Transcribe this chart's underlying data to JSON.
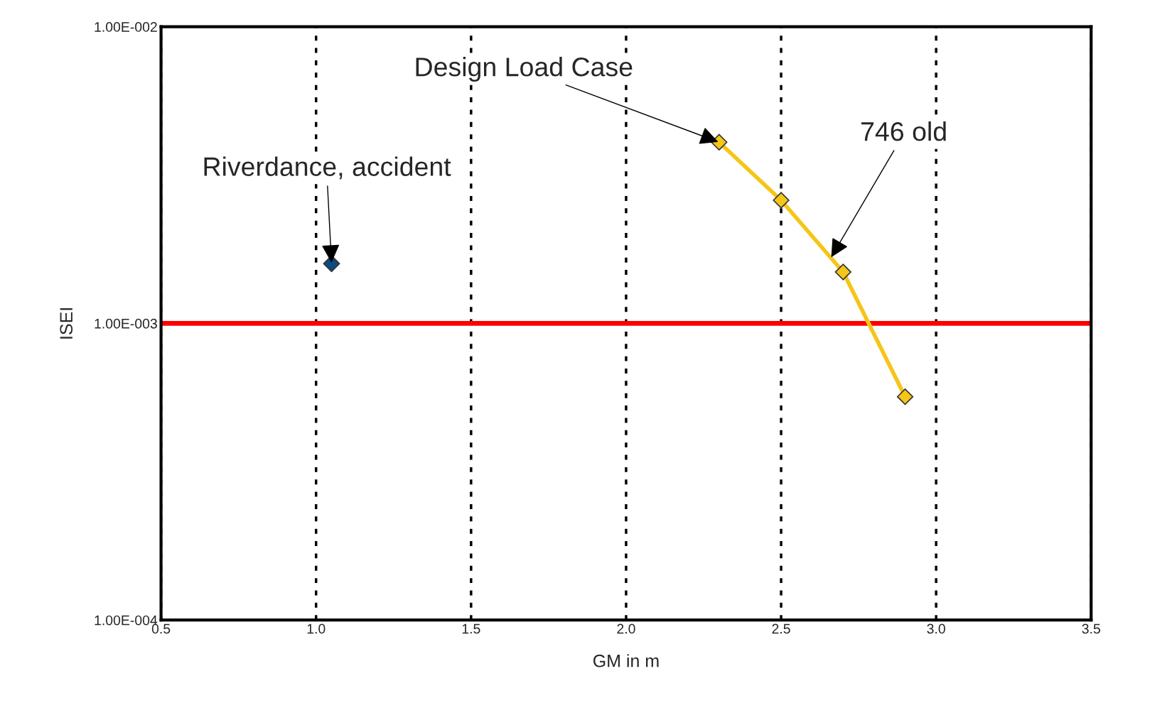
{
  "chart_data": {
    "type": "line",
    "xlabel": "GM in m",
    "ylabel": "ISEI",
    "log": "y",
    "grid": "x",
    "marker": "diamond",
    "xlim": [
      0.5,
      3.5
    ],
    "ylim": [
      0.0001,
      0.01
    ],
    "xticks": [
      {
        "value": 0.5,
        "label": "0.5"
      },
      {
        "value": 1.0,
        "label": "1.0"
      },
      {
        "value": 1.5,
        "label": "1.5"
      },
      {
        "value": 2.0,
        "label": "2.0"
      },
      {
        "value": 2.5,
        "label": "2.5"
      },
      {
        "value": 3.0,
        "label": "3.0"
      },
      {
        "value": 3.5,
        "label": "3.5"
      }
    ],
    "yticks": [
      {
        "value": 0.0001,
        "label": "1.00E-004"
      },
      {
        "value": 0.001,
        "label": "1.00E-003"
      },
      {
        "value": 0.01,
        "label": "1.00E-002"
      }
    ],
    "series": [
      {
        "type": "scatter",
        "color": "#0d4a80",
        "x": [
          1.05
        ],
        "values": [
          0.00159
        ]
      },
      {
        "color": "#f5c518",
        "x": [
          2.3,
          2.5,
          2.7,
          2.9
        ],
        "values": [
          0.00408,
          0.0026,
          0.00149,
          0.000566
        ]
      }
    ],
    "ref_lines": [
      {
        "axis": "y",
        "value": 0.001,
        "color": "#ff0000",
        "line_style": "solid"
      }
    ],
    "annotations": [
      {
        "text": "Riverdance, accident",
        "x": 1.05,
        "y": 0.00159
      },
      {
        "text": "Design Load Case",
        "x": 2.3,
        "y": 0.00408
      },
      {
        "text": "746 old",
        "x": 2.66,
        "y": 0.00166
      }
    ]
  }
}
